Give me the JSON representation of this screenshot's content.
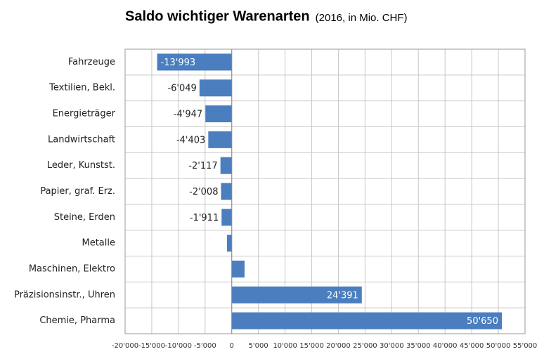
{
  "chart_data": {
    "type": "bar",
    "orientation": "horizontal",
    "title": "Saldo wichtiger Warenarten",
    "subtitle": "(2016, in Mio. CHF)",
    "categories": [
      "Fahrzeuge",
      "Textilien, Bekl.",
      "Energieträger",
      "Landwirtschaft",
      "Leder, Kunstst.",
      "Papier, graf. Erz.",
      "Steine, Erden",
      "Metalle",
      "Maschinen, Elektro",
      "Präzisionsinstr., Uhren",
      "Chemie, Pharma"
    ],
    "values": [
      -13993,
      -6049,
      -4947,
      -4403,
      -2117,
      -2008,
      -1911,
      -900,
      2400,
      24391,
      50650
    ],
    "value_labels": [
      "-13'993",
      "-6'049",
      "-4'947",
      "-4'403",
      "-2'117",
      "-2'008",
      "-1'911",
      null,
      null,
      "24'391",
      "50'650"
    ],
    "color": "#4a7ebf",
    "xlim": [
      -20000,
      55000
    ],
    "xticks": [
      {
        "value": -20000,
        "label": "-20'000"
      },
      {
        "value": -15000,
        "label": "-15'000"
      },
      {
        "value": -10000,
        "label": "-10'000"
      },
      {
        "value": -5000,
        "label": "-5'000"
      },
      0,
      {
        "value": 5000,
        "label": "5'000"
      },
      {
        "value": 10000,
        "label": "10'000"
      },
      {
        "value": 15000,
        "label": "15'000"
      },
      {
        "value": 20000,
        "label": "20'000"
      },
      {
        "value": 25000,
        "label": "25'000"
      },
      {
        "value": 30000,
        "label": "30'000"
      },
      {
        "value": 35000,
        "label": "35'000"
      },
      {
        "value": 40000,
        "label": "40'000"
      },
      {
        "value": 45000,
        "label": "45'000"
      },
      {
        "value": 50000,
        "label": "50'000"
      },
      {
        "value": 55000,
        "label": "55'000"
      }
    ],
    "grid": true
  }
}
